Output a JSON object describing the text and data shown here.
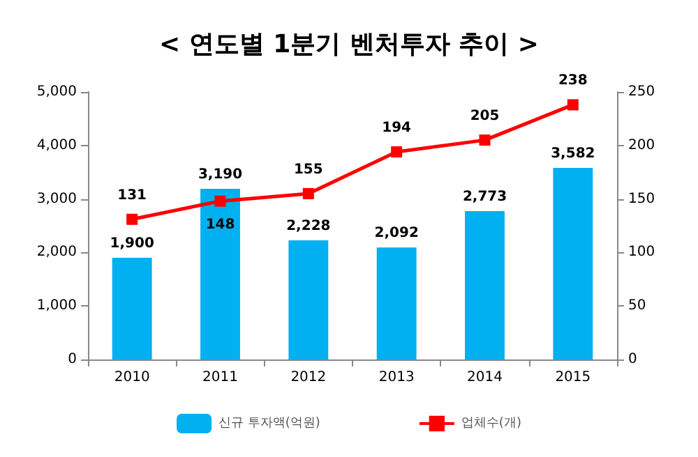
{
  "chart_data": {
    "type": "bar",
    "title": "< 연도별 1분기 벤처투자 추이 >",
    "categories": [
      "2010",
      "2011",
      "2012",
      "2013",
      "2014",
      "2015"
    ],
    "series": [
      {
        "name": "신규 투자액(억원)",
        "color": "#00b0f0",
        "values": [
          1900,
          3190,
          2228,
          2092,
          2773,
          3582
        ],
        "value_labels": [
          "1,900",
          "3,190",
          "2,228",
          "2,092",
          "2,773",
          "3,582"
        ]
      },
      {
        "name": "업체수(개)",
        "type": "line",
        "axis": "y2",
        "color": "#ff0000",
        "marker": "square",
        "values": [
          131,
          148,
          155,
          194,
          205,
          238
        ],
        "value_labels": [
          "131",
          "148",
          "155",
          "194",
          "205",
          "238"
        ]
      }
    ],
    "ylim": [
      0,
      5000
    ],
    "yticks": [
      0,
      {
        "value": 1000,
        "label": "1,000"
      },
      {
        "value": 2000,
        "label": "2,000"
      },
      {
        "value": 3000,
        "label": "3,000"
      },
      {
        "value": 4000,
        "label": "4,000"
      },
      {
        "value": 5000,
        "label": "5,000"
      }
    ],
    "y2lim": [
      0,
      250
    ],
    "y2ticks": [
      0,
      50,
      100,
      150,
      200,
      250
    ],
    "grid": false,
    "legend": "bottom"
  }
}
